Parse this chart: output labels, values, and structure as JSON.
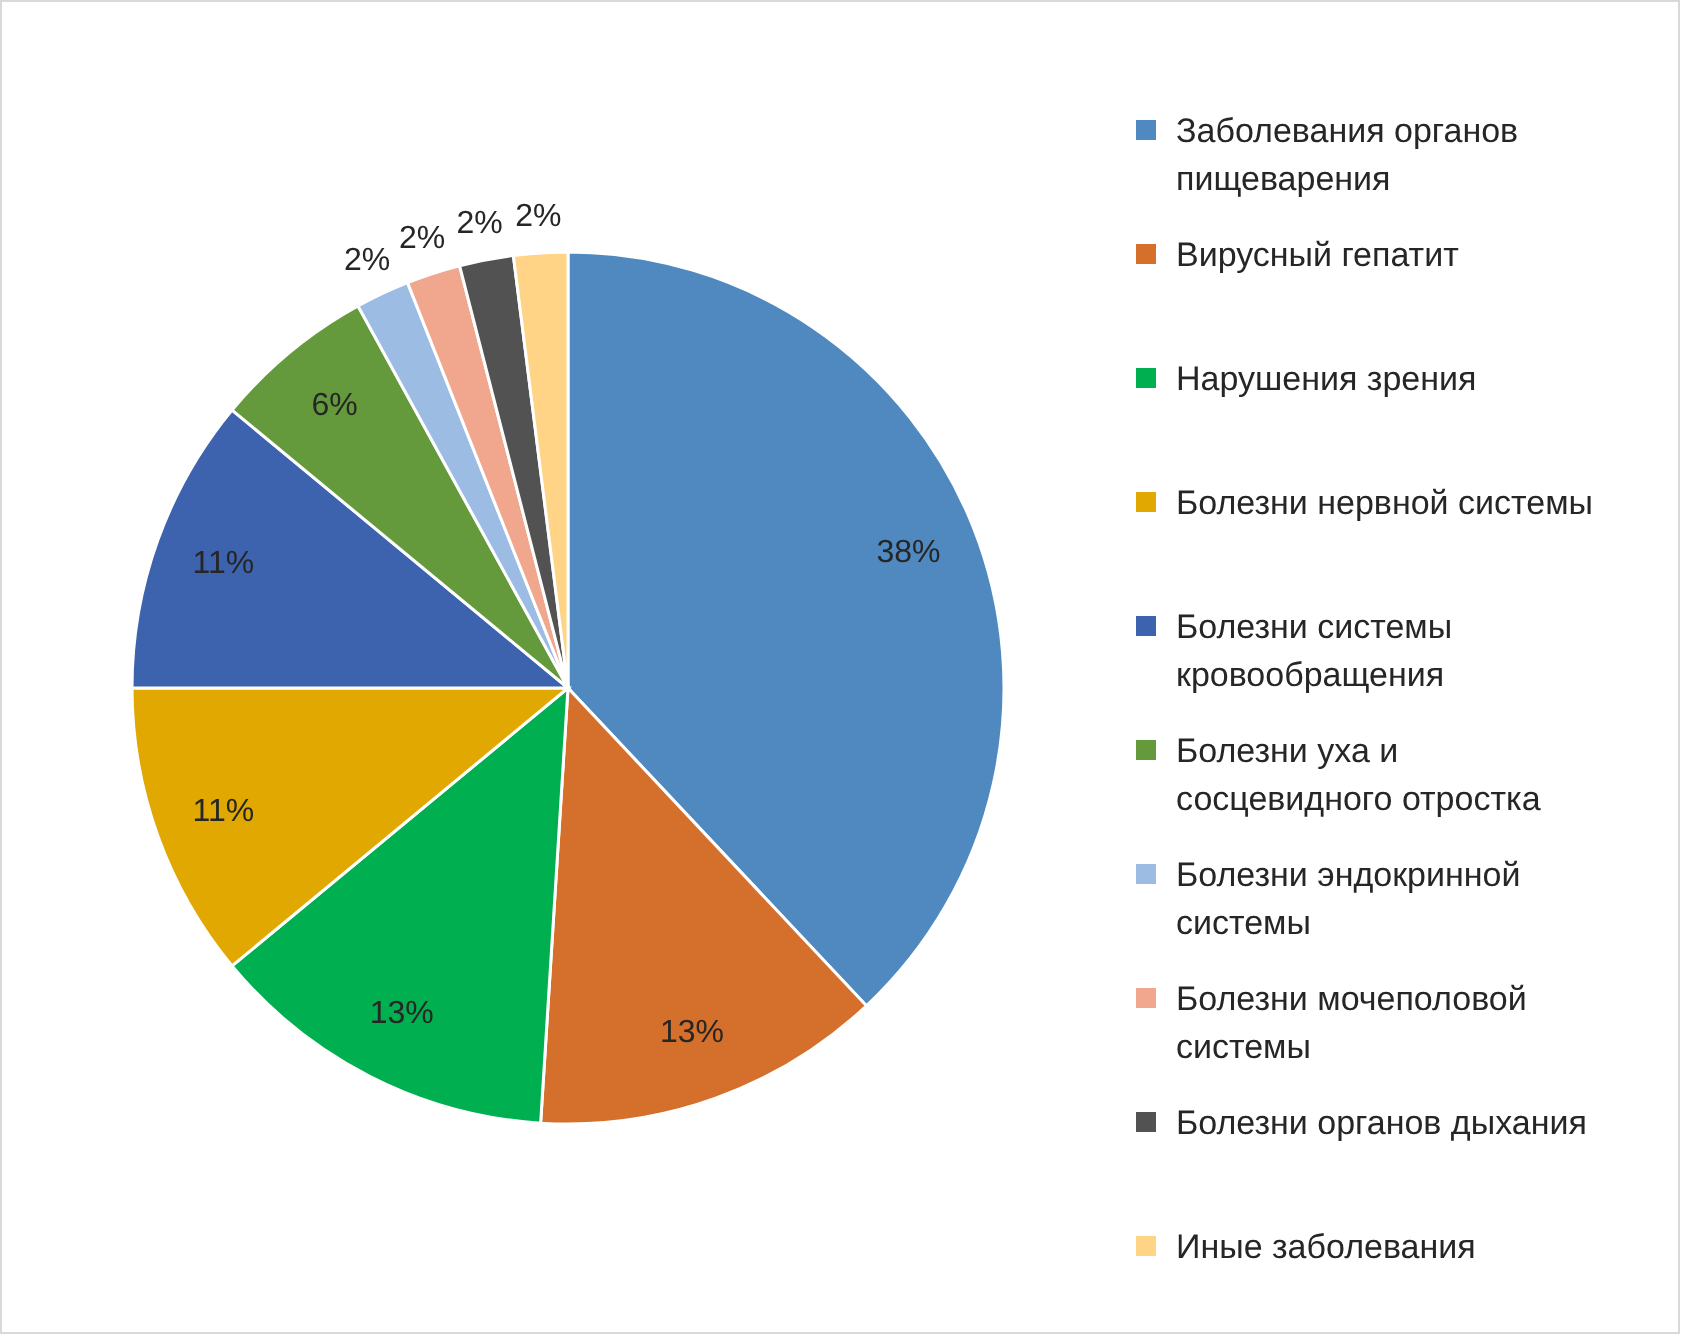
{
  "chart_data": {
    "type": "pie",
    "categories": [
      "Заболевания органов пищеварения",
      "Вирусный гепатит",
      "Нарушения зрения",
      "Болезни нервной системы",
      "Болезни системы кровообращения",
      "Болезни уха и сосцевидного отростка",
      "Болезни эндокринной системы",
      "Болезни мочеполовой системы",
      "Болезни органов дыхания",
      "Иные заболевания"
    ],
    "values": [
      38,
      13,
      13,
      11,
      11,
      6,
      2,
      2,
      2,
      2
    ],
    "colors": [
      "#4f89c0",
      "#d4702b",
      "#00b050",
      "#e0a800",
      "#3d63ae",
      "#649a3c",
      "#9dbce4",
      "#f1a68e",
      "#525252",
      "#ffd486"
    ],
    "value_labels": [
      "38%",
      "13%",
      "13%",
      "11%",
      "11%",
      "6%",
      "2%",
      "2%",
      "2%",
      "2%"
    ],
    "legend": "right"
  }
}
